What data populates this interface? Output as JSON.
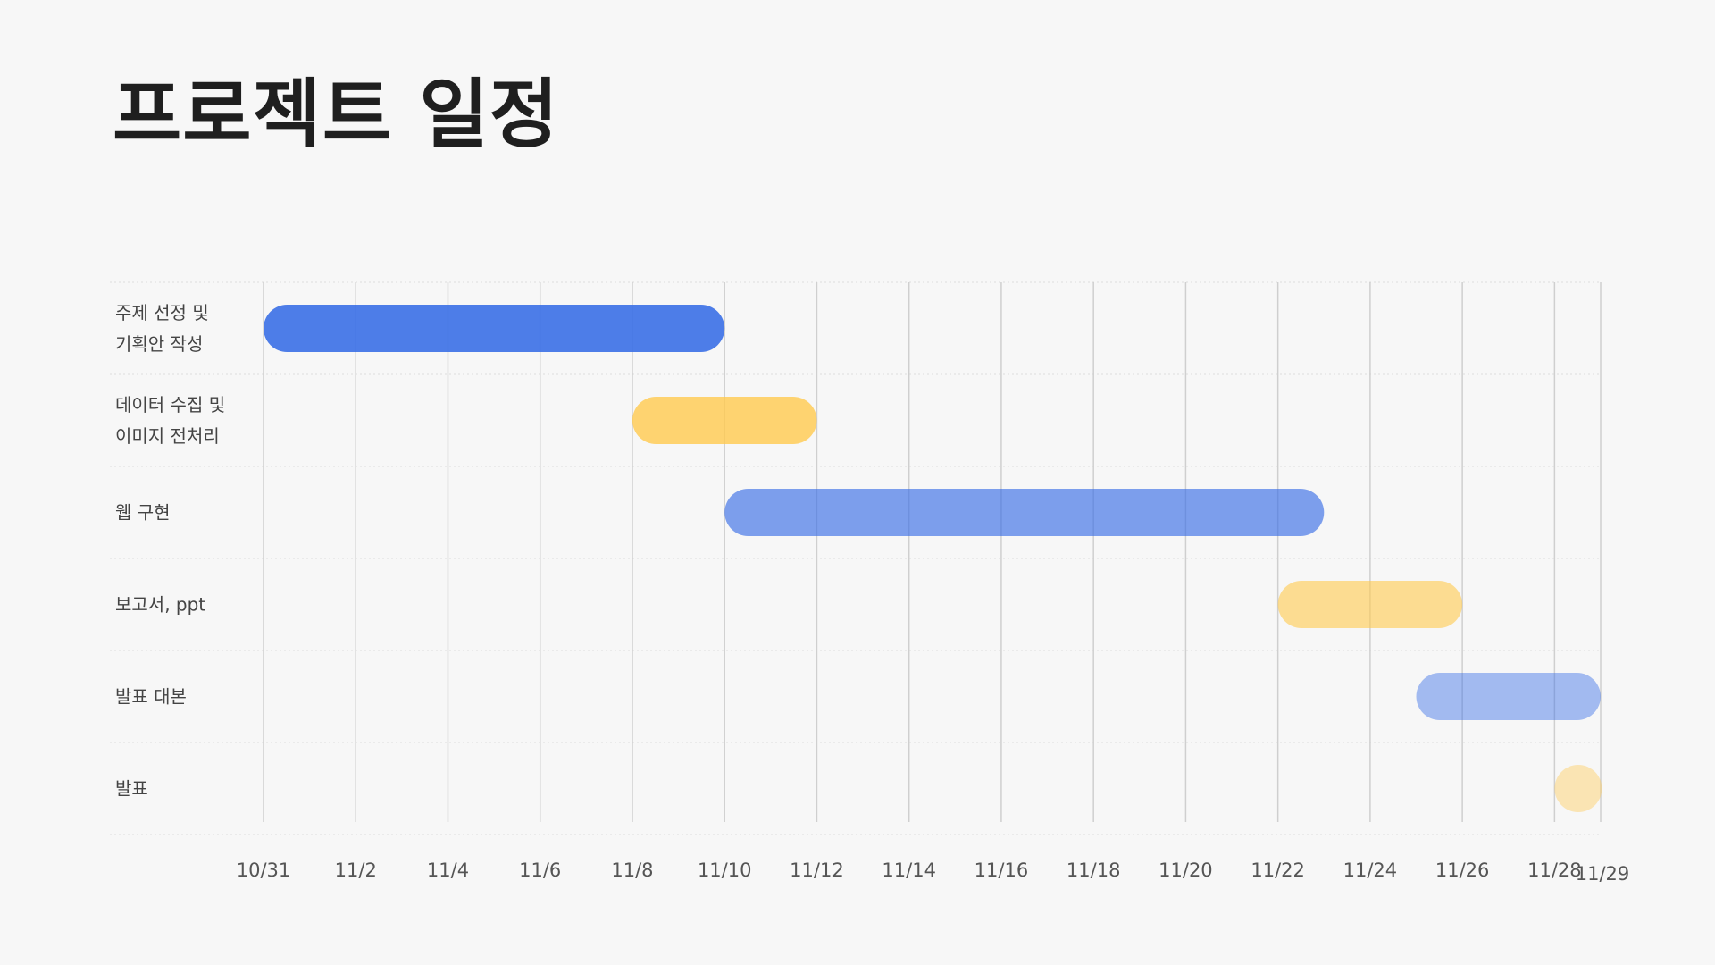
{
  "page": {
    "title": "프로젝트 일정"
  },
  "chart_data": {
    "type": "bar",
    "orientation": "horizontal",
    "title": "",
    "xlabel": "",
    "ylabel": "",
    "grid": true,
    "xlim": [
      "2023-10-31",
      "2023-11-29"
    ],
    "x_ticks": [
      "10/31",
      "11/2",
      "11/4",
      "11/6",
      "11/8",
      "11/10",
      "11/12",
      "11/14",
      "11/16",
      "11/18",
      "11/20",
      "11/22",
      "11/24",
      "11/26",
      "11/28",
      "11/29"
    ],
    "x_tick_dates": [
      "2023-10-31",
      "2023-11-02",
      "2023-11-04",
      "2023-11-06",
      "2023-11-08",
      "2023-11-10",
      "2023-11-12",
      "2023-11-14",
      "2023-11-16",
      "2023-11-18",
      "2023-11-20",
      "2023-11-22",
      "2023-11-24",
      "2023-11-26",
      "2023-11-28",
      "2023-11-29"
    ],
    "tasks": [
      {
        "label_lines": [
          "주제 선정 및",
          "기획안 작성"
        ],
        "start": "2023-10-31",
        "end": "2023-11-10",
        "color": "#3a6fe6",
        "opacity": 0.9
      },
      {
        "label_lines": [
          "데이터 수집 및",
          "이미지 전처리"
        ],
        "start": "2023-11-08",
        "end": "2023-11-12",
        "color": "#ffc94d",
        "opacity": 0.8
      },
      {
        "label_lines": [
          "웹 구현"
        ],
        "start": "2023-11-10",
        "end": "2023-11-23",
        "color": "#3a6fe6",
        "opacity": 0.65
      },
      {
        "label_lines": [
          "보고서, ppt"
        ],
        "start": "2023-11-22",
        "end": "2023-11-26",
        "color": "#ffc94d",
        "opacity": 0.6
      },
      {
        "label_lines": [
          "발표 대본"
        ],
        "start": "2023-11-25",
        "end": "2023-11-29",
        "color": "#3a6fe6",
        "opacity": 0.45
      },
      {
        "label_lines": [
          "발표"
        ],
        "start": "2023-11-28",
        "end": "2023-11-29",
        "color": "#ffc94d",
        "opacity": 0.4
      }
    ]
  }
}
